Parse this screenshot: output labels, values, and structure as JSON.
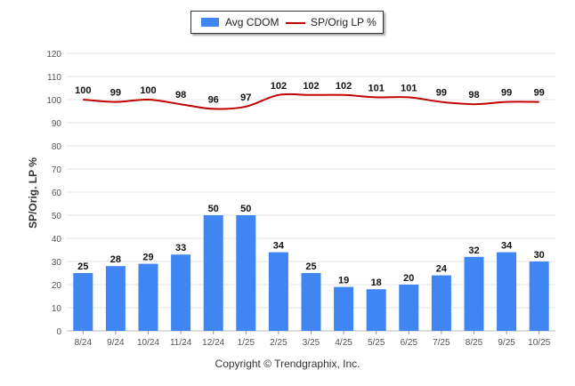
{
  "chart_data": {
    "type": "bar",
    "categories": [
      "8/24",
      "9/24",
      "10/24",
      "11/24",
      "12/24",
      "1/25",
      "2/25",
      "3/25",
      "4/25",
      "5/25",
      "6/25",
      "7/25",
      "8/25",
      "9/25",
      "10/25"
    ],
    "series": [
      {
        "name": "Avg CDOM",
        "type": "bar",
        "color": "#3f86f2",
        "values": [
          25,
          28,
          29,
          33,
          50,
          50,
          34,
          25,
          19,
          18,
          20,
          24,
          32,
          34,
          30
        ]
      },
      {
        "name": "SP/Orig LP %",
        "type": "line",
        "color": "#c00000",
        "values": [
          100,
          99,
          100,
          98,
          96,
          97,
          102,
          102,
          102,
          101,
          101,
          99,
          98,
          99,
          99
        ]
      }
    ],
    "ylabel": "SP/Orig. LP %",
    "ylim": [
      0,
      120
    ],
    "yticks": [
      0,
      10,
      20,
      30,
      40,
      50,
      60,
      70,
      80,
      90,
      100,
      110,
      120
    ],
    "grid": true,
    "legend_position": "top-center"
  },
  "legend": {
    "bar_label": "Avg CDOM",
    "line_label": "SP/Orig LP %"
  },
  "footer": {
    "copyright": "Copyright © Trendgraphix, Inc."
  }
}
